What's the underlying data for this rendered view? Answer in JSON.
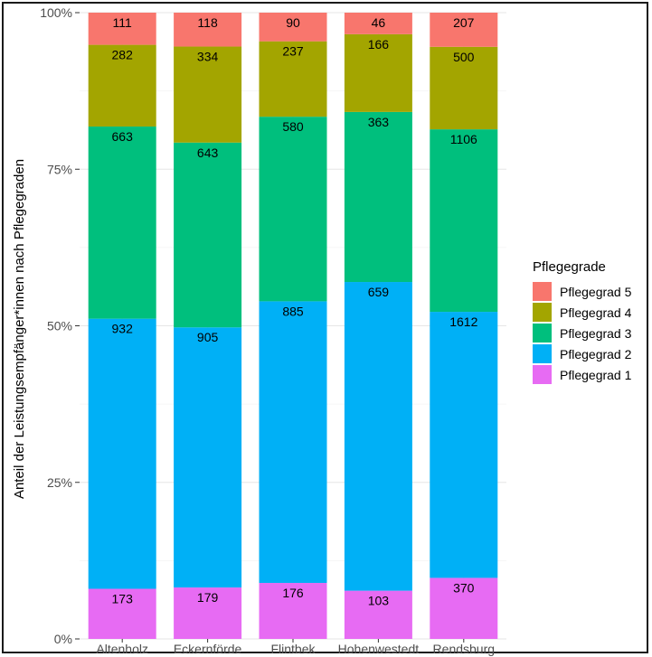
{
  "chart_data": {
    "type": "bar",
    "stacked": true,
    "normalized": true,
    "categories": [
      "Altenholz",
      "Eckernförde",
      "Flintbek",
      "Hohenwestedt",
      "Rendsburg"
    ],
    "series": [
      {
        "name": "Pflegegrad 1",
        "color": "#e76bf3",
        "values": [
          173,
          179,
          176,
          103,
          370
        ]
      },
      {
        "name": "Pflegegrad 2",
        "color": "#00b0f6",
        "values": [
          932,
          905,
          885,
          659,
          1612
        ]
      },
      {
        "name": "Pflegegrad 3",
        "color": "#00bf7d",
        "values": [
          663,
          643,
          580,
          363,
          1106
        ]
      },
      {
        "name": "Pflegegrad 4",
        "color": "#a3a500",
        "values": [
          282,
          334,
          237,
          166,
          500
        ]
      },
      {
        "name": "Pflegegrad 5",
        "color": "#f8766d",
        "values": [
          111,
          118,
          90,
          46,
          207
        ]
      }
    ],
    "y_ticks": [
      "0%",
      "25%",
      "50%",
      "75%",
      "100%"
    ],
    "ylim": [
      0,
      1
    ],
    "ylabel": "Anteil der Leistungsempfänger*innen nach Pflegegraden",
    "xlabel": "",
    "grid": true,
    "legend": {
      "title": "Pflegegrade",
      "placement": "right",
      "order": [
        "Pflegegrad 5",
        "Pflegegrad 4",
        "Pflegegrad 3",
        "Pflegegrad 2",
        "Pflegegrad 1"
      ]
    }
  }
}
